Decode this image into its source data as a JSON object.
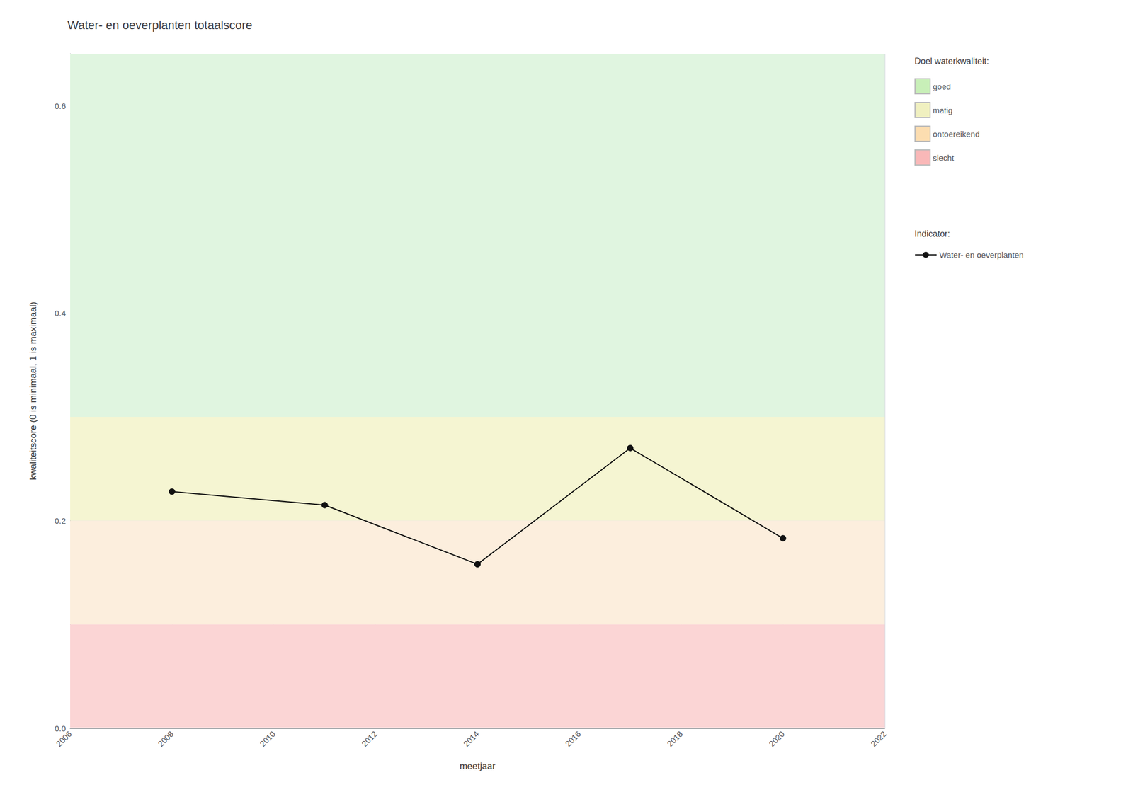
{
  "chart_data": {
    "type": "line",
    "title": "Water- en oeverplanten totaalscore",
    "xlabel": "meetjaar",
    "ylabel": "kwaliteitscore (0 is minimaal, 1 is maximaal)",
    "x": [
      2008,
      2011,
      2014,
      2017,
      2020
    ],
    "series": [
      {
        "name": "Water- en oeverplanten",
        "color": "#111111",
        "marker": "circle",
        "line_style": "solid",
        "values": [
          0.228,
          0.215,
          0.158,
          0.27,
          0.183
        ]
      }
    ],
    "xlim": [
      2006,
      2022
    ],
    "xticks": [
      2006,
      2008,
      2010,
      2012,
      2014,
      2016,
      2018,
      2020,
      2022
    ],
    "ylim": [
      0,
      0.65
    ],
    "yticks": [
      {
        "value": 0.0,
        "label": "0.0"
      },
      {
        "value": 0.2,
        "label": "0.2"
      },
      {
        "value": 0.4,
        "label": "0.4"
      },
      {
        "value": 0.6,
        "label": "0.6"
      }
    ],
    "grid": true,
    "legend": "right",
    "legend_titles": {
      "bands": "Doel waterkwaliteit:",
      "series": "Indicator:"
    },
    "bands": [
      {
        "name": "goed",
        "from": 0.3,
        "to": 0.65,
        "color": "#e0f5e0",
        "legend_color": "#c8efb8"
      },
      {
        "name": "matig",
        "from": 0.2,
        "to": 0.3,
        "color": "#f5f5d2",
        "legend_color": "#f0f0c0"
      },
      {
        "name": "ontoereikend",
        "from": 0.1,
        "to": 0.2,
        "color": "#fceedd",
        "legend_color": "#fcddb0"
      },
      {
        "name": "slecht",
        "from": 0.0,
        "to": 0.1,
        "color": "#fbd5d5",
        "legend_color": "#f9b8b8"
      }
    ]
  }
}
